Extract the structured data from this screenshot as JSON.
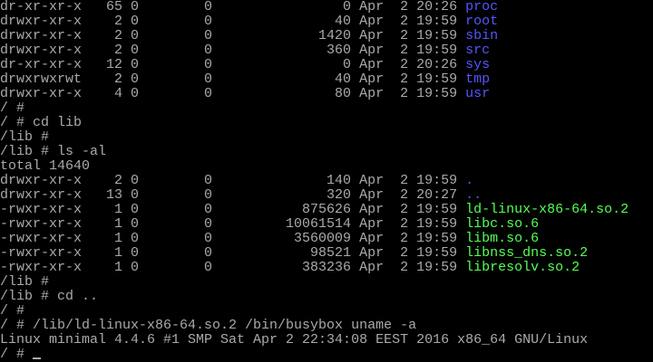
{
  "colors": {
    "text": "#aaaaaa",
    "directory": "#5555ff",
    "executable": "#55ff55",
    "background": "#000000"
  },
  "terminal": {
    "lines": [
      {
        "type": "entry",
        "perms": "dr-xr-xr-x",
        "links": "65",
        "owner": "0",
        "group": "0",
        "size": "0",
        "month": "Apr",
        "day": "2",
        "time": "20:26",
        "name": "proc",
        "kind": "directory"
      },
      {
        "type": "entry",
        "perms": "drwxr-xr-x",
        "links": "2",
        "owner": "0",
        "group": "0",
        "size": "40",
        "month": "Apr",
        "day": "2",
        "time": "19:59",
        "name": "root",
        "kind": "directory"
      },
      {
        "type": "entry",
        "perms": "drwxr-xr-x",
        "links": "2",
        "owner": "0",
        "group": "0",
        "size": "1420",
        "month": "Apr",
        "day": "2",
        "time": "19:59",
        "name": "sbin",
        "kind": "directory"
      },
      {
        "type": "entry",
        "perms": "drwxr-xr-x",
        "links": "2",
        "owner": "0",
        "group": "0",
        "size": "360",
        "month": "Apr",
        "day": "2",
        "time": "19:59",
        "name": "src",
        "kind": "directory"
      },
      {
        "type": "entry",
        "perms": "dr-xr-xr-x",
        "links": "12",
        "owner": "0",
        "group": "0",
        "size": "0",
        "month": "Apr",
        "day": "2",
        "time": "20:26",
        "name": "sys",
        "kind": "directory"
      },
      {
        "type": "entry",
        "perms": "drwxrwxrwt",
        "links": "2",
        "owner": "0",
        "group": "0",
        "size": "40",
        "month": "Apr",
        "day": "2",
        "time": "19:59",
        "name": "tmp",
        "kind": "directory"
      },
      {
        "type": "entry",
        "perms": "drwxr-xr-x",
        "links": "4",
        "owner": "0",
        "group": "0",
        "size": "80",
        "month": "Apr",
        "day": "2",
        "time": "19:59",
        "name": "usr",
        "kind": "directory"
      },
      {
        "type": "text",
        "text": "/ #"
      },
      {
        "type": "text",
        "text": "/ # cd lib"
      },
      {
        "type": "text",
        "text": "/lib #"
      },
      {
        "type": "text",
        "text": "/lib # ls -al"
      },
      {
        "type": "text",
        "text": "total 14640"
      },
      {
        "type": "entry",
        "perms": "drwxr-xr-x",
        "links": "2",
        "owner": "0",
        "group": "0",
        "size": "140",
        "month": "Apr",
        "day": "2",
        "time": "19:59",
        "name": ".",
        "kind": "directory"
      },
      {
        "type": "entry",
        "perms": "drwxr-xr-x",
        "links": "13",
        "owner": "0",
        "group": "0",
        "size": "320",
        "month": "Apr",
        "day": "2",
        "time": "20:27",
        "name": "..",
        "kind": "directory"
      },
      {
        "type": "entry",
        "perms": "-rwxr-xr-x",
        "links": "1",
        "owner": "0",
        "group": "0",
        "size": "875626",
        "month": "Apr",
        "day": "2",
        "time": "19:59",
        "name": "ld-linux-x86-64.so.2",
        "kind": "executable"
      },
      {
        "type": "entry",
        "perms": "-rwxr-xr-x",
        "links": "1",
        "owner": "0",
        "group": "0",
        "size": "10061514",
        "month": "Apr",
        "day": "2",
        "time": "19:59",
        "name": "libc.so.6",
        "kind": "executable"
      },
      {
        "type": "entry",
        "perms": "-rwxr-xr-x",
        "links": "1",
        "owner": "0",
        "group": "0",
        "size": "3560009",
        "month": "Apr",
        "day": "2",
        "time": "19:59",
        "name": "libm.so.6",
        "kind": "executable"
      },
      {
        "type": "entry",
        "perms": "-rwxr-xr-x",
        "links": "1",
        "owner": "0",
        "group": "0",
        "size": "98521",
        "month": "Apr",
        "day": "2",
        "time": "19:59",
        "name": "libnss_dns.so.2",
        "kind": "executable"
      },
      {
        "type": "entry",
        "perms": "-rwxr-xr-x",
        "links": "1",
        "owner": "0",
        "group": "0",
        "size": "383236",
        "month": "Apr",
        "day": "2",
        "time": "19:59",
        "name": "libresolv.so.2",
        "kind": "executable"
      },
      {
        "type": "text",
        "text": "/lib #"
      },
      {
        "type": "text",
        "text": "/lib # cd .."
      },
      {
        "type": "text",
        "text": "/ #"
      },
      {
        "type": "text",
        "text": "/ # /lib/ld-linux-x86-64.so.2 /bin/busybox uname -a"
      },
      {
        "type": "text",
        "text": "Linux minimal 4.4.6 #1 SMP Sat Apr 2 22:34:08 EEST 2016 x86_64 GNU/Linux"
      },
      {
        "type": "prompt",
        "text": "/ # "
      }
    ]
  }
}
